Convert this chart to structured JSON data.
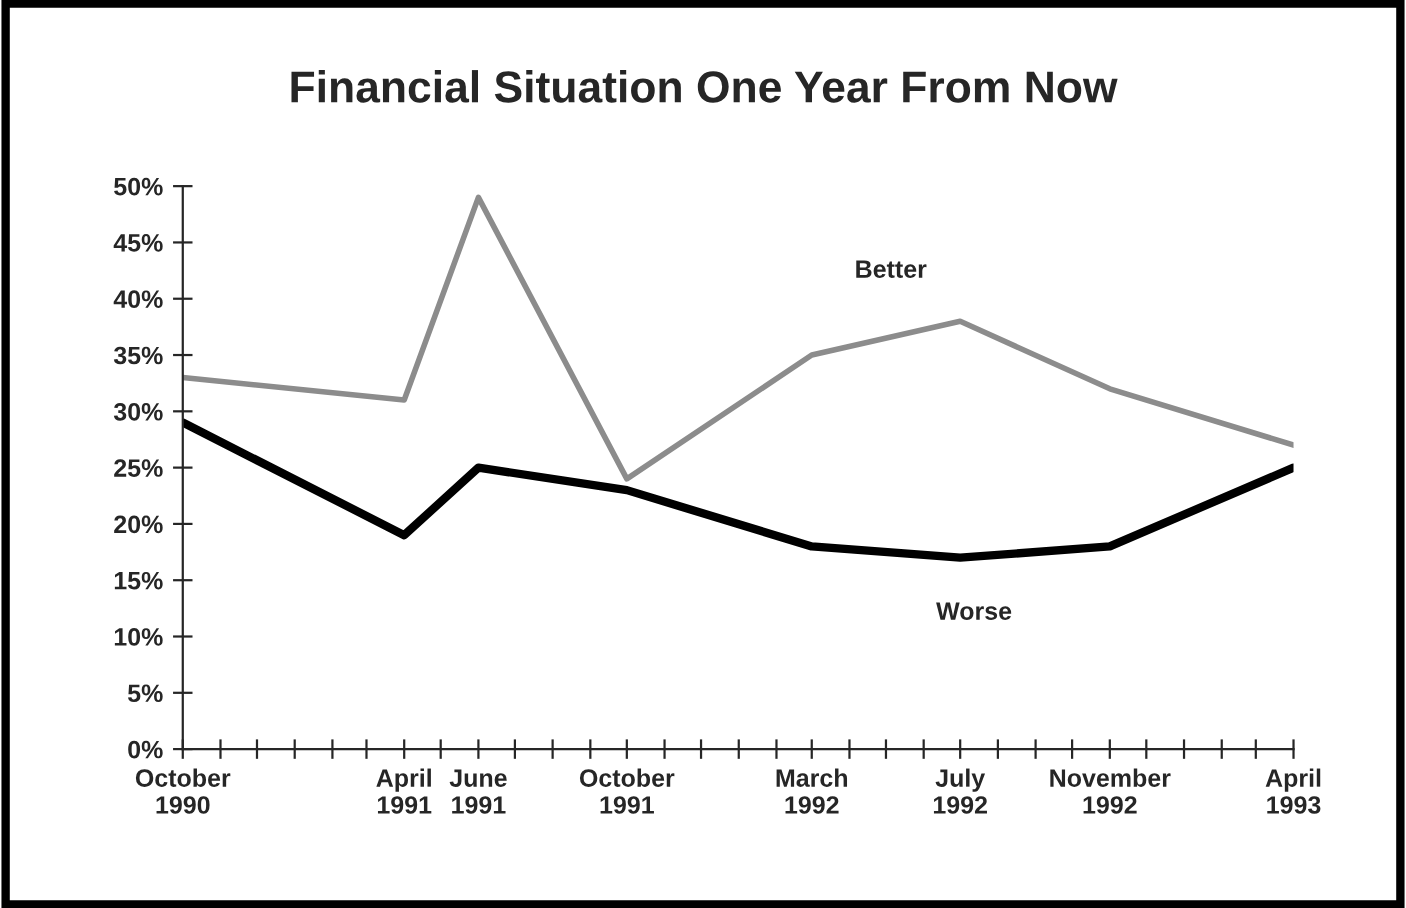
{
  "chart_data": {
    "type": "line",
    "title": "Financial Situation One Year From Now",
    "x": [
      "1990-10",
      "1991-04",
      "1991-06",
      "1991-10",
      "1992-03",
      "1992-07",
      "1992-11",
      "1993-04"
    ],
    "series": [
      {
        "name": "Better",
        "color": "#8c8c8c",
        "values": [
          33,
          31,
          49,
          24,
          35,
          38,
          32,
          27
        ]
      },
      {
        "name": "Worse",
        "color": "#000000",
        "values": [
          29,
          19,
          25,
          23,
          18,
          17,
          18,
          25
        ]
      }
    ],
    "xlim": [
      "1990-10",
      "1993-04"
    ],
    "xticks": [
      {
        "value": "1990-10",
        "label": "October\n1990"
      },
      {
        "value": "1990-11",
        "label": null
      },
      {
        "value": "1990-12",
        "label": null
      },
      {
        "value": "1991-01",
        "label": null
      },
      {
        "value": "1991-02",
        "label": null
      },
      {
        "value": "1991-03",
        "label": null
      },
      {
        "value": "1991-04",
        "label": "April\n1991"
      },
      {
        "value": "1991-05",
        "label": null
      },
      {
        "value": "1991-06",
        "label": "June\n1991"
      },
      {
        "value": "1991-07",
        "label": null
      },
      {
        "value": "1991-08",
        "label": null
      },
      {
        "value": "1991-09",
        "label": null
      },
      {
        "value": "1991-10",
        "label": "October\n1991"
      },
      {
        "value": "1991-11",
        "label": null
      },
      {
        "value": "1991-12",
        "label": null
      },
      {
        "value": "1992-01",
        "label": null
      },
      {
        "value": "1992-02",
        "label": null
      },
      {
        "value": "1992-03",
        "label": "March\n1992"
      },
      {
        "value": "1992-04",
        "label": null
      },
      {
        "value": "1992-05",
        "label": null
      },
      {
        "value": "1992-06",
        "label": null
      },
      {
        "value": "1992-07",
        "label": "July\n1992"
      },
      {
        "value": "1992-08",
        "label": null
      },
      {
        "value": "1992-09",
        "label": null
      },
      {
        "value": "1992-10",
        "label": null
      },
      {
        "value": "1992-11",
        "label": "November\n1992"
      },
      {
        "value": "1992-12",
        "label": null
      },
      {
        "value": "1993-01",
        "label": null
      },
      {
        "value": "1993-02",
        "label": null
      },
      {
        "value": "1993-03",
        "label": null
      },
      {
        "value": "1993-04",
        "label": "April\n1993"
      }
    ],
    "ylim": [
      0,
      50
    ],
    "yticks": [
      {
        "value": 0,
        "label": "0%"
      },
      {
        "value": 5,
        "label": "5%"
      },
      {
        "value": 10,
        "label": "10%"
      },
      {
        "value": 15,
        "label": "15%"
      },
      {
        "value": 20,
        "label": "20%"
      },
      {
        "value": 25,
        "label": "25%"
      },
      {
        "value": 30,
        "label": "30%"
      },
      {
        "value": 35,
        "label": "35%"
      },
      {
        "value": 40,
        "label": "40%"
      },
      {
        "value": 45,
        "label": "45%"
      },
      {
        "value": 50,
        "label": "50%"
      }
    ],
    "grid": false,
    "legend": false,
    "marker": "none",
    "line_style": "solid"
  }
}
